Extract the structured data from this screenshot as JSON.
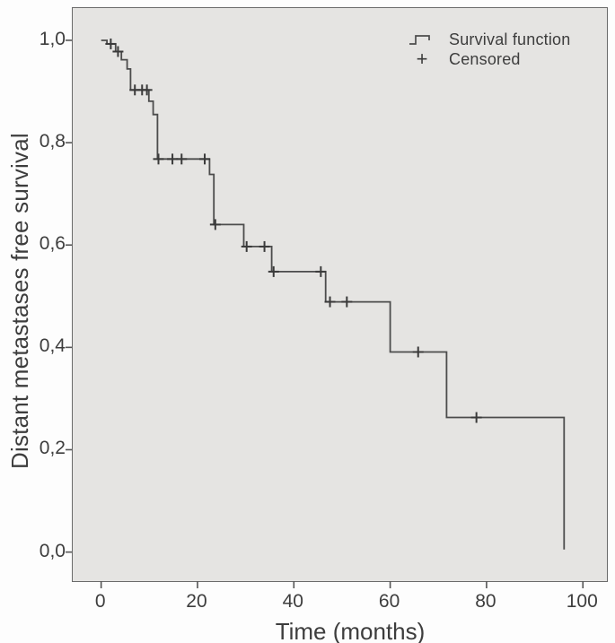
{
  "figure": {
    "background": "#fdfdfd",
    "plot_background": "#e5e4e2",
    "frame_color": "#6a6a6a",
    "curve_color": "#4c4c4c",
    "censor_color": "#3a3a3a",
    "text_color": "#3d3d3d",
    "tick_color": "#555555"
  },
  "legend": {
    "position": "top-right",
    "entries": [
      {
        "icon": "step-line-icon",
        "label": "Survival function"
      },
      {
        "icon": "plus-marker-icon",
        "label": "Censored"
      }
    ]
  },
  "chart_data": {
    "type": "line",
    "subtype": "kaplan-meier-step",
    "title": "",
    "xlabel": "Time (months)",
    "ylabel": "Distant metastases free survival",
    "xlim": [
      -5.9,
      104.8
    ],
    "ylim": [
      -0.055,
      1.063
    ],
    "grid": false,
    "x_ticks": [
      {
        "value": 0,
        "label": "0"
      },
      {
        "value": 20,
        "label": "20"
      },
      {
        "value": 40,
        "label": "40"
      },
      {
        "value": 60,
        "label": "60"
      },
      {
        "value": 80,
        "label": "80"
      },
      {
        "value": 100,
        "label": "100"
      }
    ],
    "y_ticks": [
      {
        "value": 1.0,
        "label": "1,0"
      },
      {
        "value": 0.8,
        "label": "0,8"
      },
      {
        "value": 0.6,
        "label": "0,6"
      },
      {
        "value": 0.4,
        "label": "0,4"
      },
      {
        "value": 0.2,
        "label": "0,2"
      },
      {
        "value": 0.0,
        "label": "0,0"
      }
    ],
    "series": [
      {
        "name": "Survival function",
        "type": "step",
        "points": [
          [
            0,
            1.0
          ],
          [
            1.2,
            0.993
          ],
          [
            3.0,
            0.978
          ],
          [
            4.2,
            0.962
          ],
          [
            5.4,
            0.944
          ],
          [
            6.1,
            0.903
          ],
          [
            9.9,
            0.881
          ],
          [
            10.8,
            0.855
          ],
          [
            11.7,
            0.768
          ],
          [
            22.5,
            0.738
          ],
          [
            23.4,
            0.64
          ],
          [
            29.6,
            0.597
          ],
          [
            35.4,
            0.548
          ],
          [
            46.6,
            0.489
          ],
          [
            60.0,
            0.391
          ],
          [
            71.7,
            0.263
          ],
          [
            96.1,
            0.005
          ]
        ]
      }
    ],
    "censored": [
      [
        2.0,
        0.993
      ],
      [
        3.5,
        0.978
      ],
      [
        7.0,
        0.903
      ],
      [
        8.5,
        0.903
      ],
      [
        9.5,
        0.903
      ],
      [
        11.9,
        0.768
      ],
      [
        14.8,
        0.768
      ],
      [
        16.7,
        0.768
      ],
      [
        21.5,
        0.768
      ],
      [
        23.7,
        0.64
      ],
      [
        30.2,
        0.597
      ],
      [
        33.9,
        0.597
      ],
      [
        35.8,
        0.548
      ],
      [
        45.6,
        0.548
      ],
      [
        47.5,
        0.489
      ],
      [
        51.0,
        0.489
      ],
      [
        65.8,
        0.391
      ],
      [
        77.9,
        0.263
      ]
    ]
  }
}
